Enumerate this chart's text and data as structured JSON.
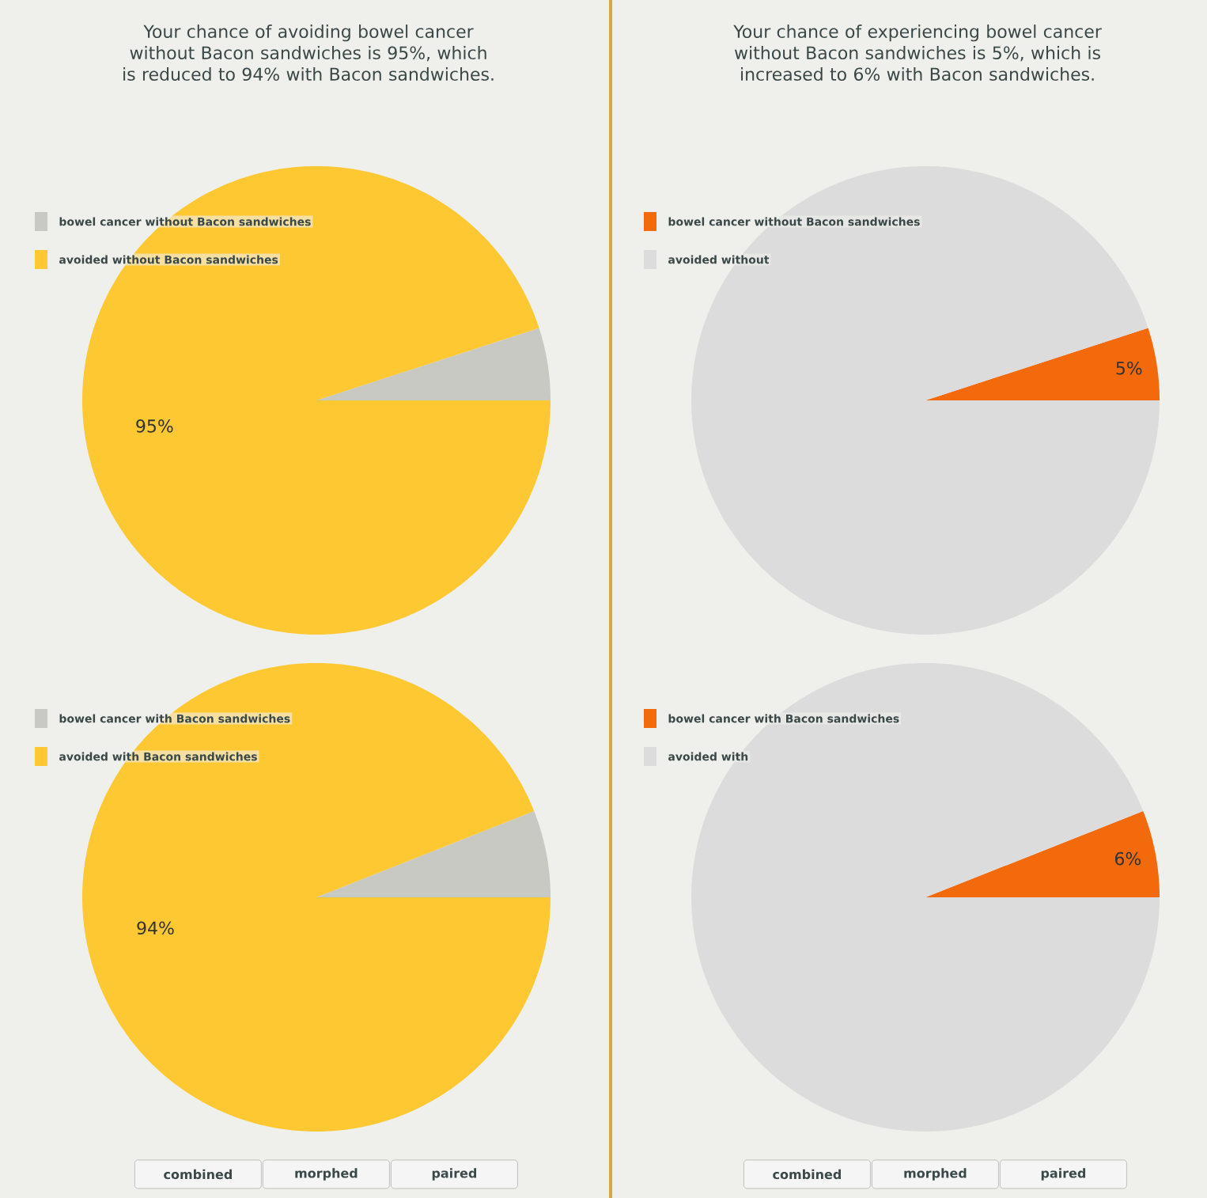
{
  "chart_data": [
    {
      "type": "pie",
      "title": "Your chance of avoiding bowel cancer without Bacon sandwiches is 95%, which is reduced to 94% with Bacon sandwiches.",
      "categories": [
        "bowel cancer without Bacon sandwiches",
        "avoided without Bacon sandwiches"
      ],
      "values": [
        5,
        95
      ],
      "colors": [
        "#c8c9c3",
        "#fec832"
      ],
      "value_labels": [
        null,
        "95%"
      ],
      "legend": "top left"
    },
    {
      "type": "pie",
      "title": "Your chance of experiencing bowel cancer without Bacon sandwiches is 5%, which is increased to 6% with Bacon sandwiches.",
      "categories": [
        "bowel cancer without Bacon sandwiches",
        "avoided without"
      ],
      "values": [
        5,
        95
      ],
      "colors": [
        "#f26a0c",
        "#dcdcdc"
      ],
      "value_labels": [
        "5%",
        null
      ],
      "legend": "top left"
    },
    {
      "type": "pie",
      "categories": [
        "bowel cancer with Bacon sandwiches",
        "avoided with Bacon sandwiches"
      ],
      "values": [
        6,
        94
      ],
      "colors": [
        "#c8c9c3",
        "#fec832"
      ],
      "value_labels": [
        null,
        "94%"
      ],
      "legend": "top left",
      "annotations": [
        "combined",
        "morphed",
        "paired"
      ]
    },
    {
      "type": "pie",
      "categories": [
        "bowel cancer with Bacon sandwiches",
        "avoided with"
      ],
      "values": [
        6,
        94
      ],
      "colors": [
        "#f26a0c",
        "#dcdcdc"
      ],
      "value_labels": [
        "6%",
        null
      ],
      "legend": "top left",
      "annotations": [
        "combined",
        "morphed",
        "paired"
      ]
    }
  ]
}
